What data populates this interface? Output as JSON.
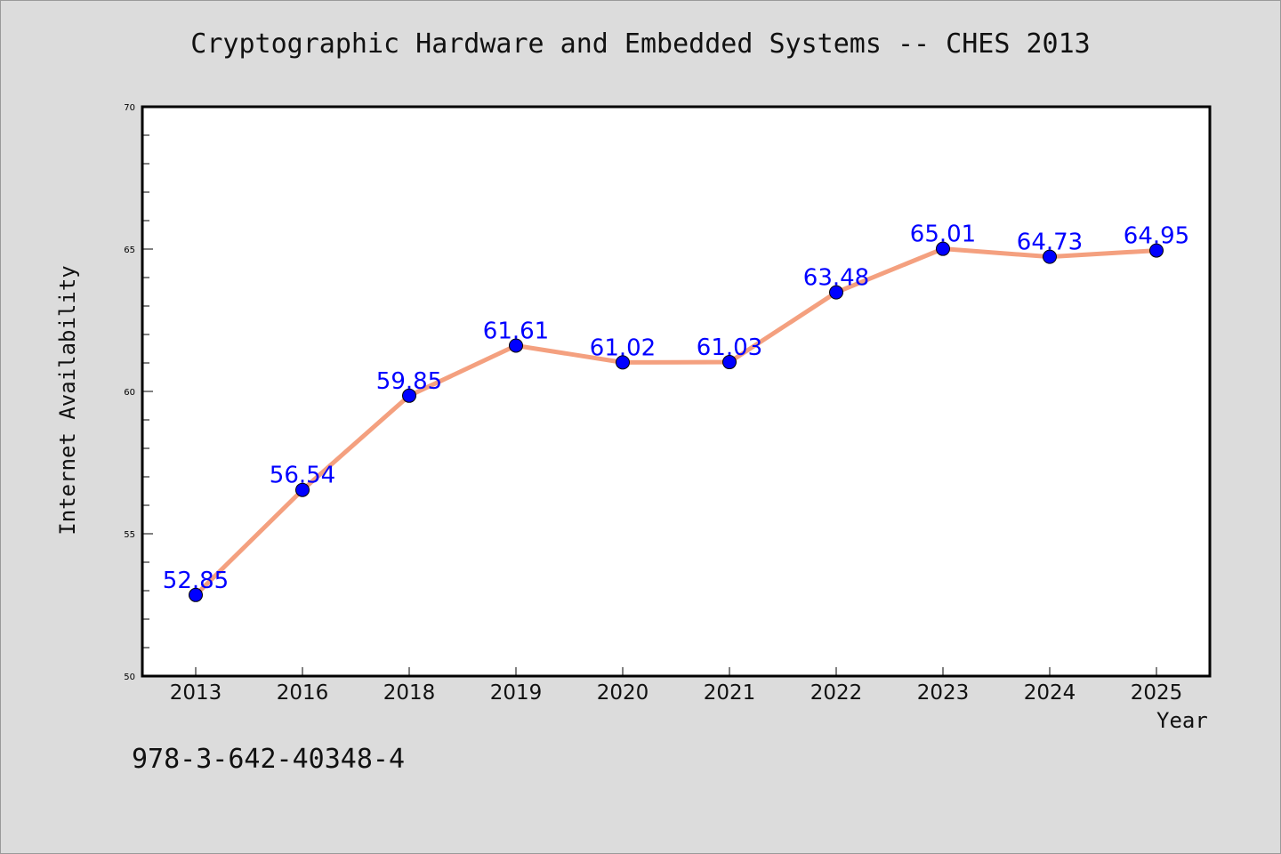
{
  "title": "Cryptographic Hardware and Embedded Systems -- CHES 2013",
  "footnote": "978-3-642-40348-4",
  "colors": {
    "background": "#dcdcdc",
    "plot_background": "#ffffff",
    "line": "#f4a07f",
    "marker": "#0000ff",
    "data_label": "#0000ff"
  },
  "chart_data": {
    "type": "line",
    "title": "Cryptographic Hardware and Embedded Systems -- CHES 2013",
    "xlabel": "Year",
    "ylabel": "Internet Availability",
    "categories": [
      "2013",
      "2016",
      "2018",
      "2019",
      "2020",
      "2021",
      "2022",
      "2023",
      "2024",
      "2025"
    ],
    "series": [
      {
        "values": [
          52.85,
          56.54,
          59.85,
          61.61,
          61.02,
          61.03,
          63.48,
          65.01,
          64.73,
          64.95
        ],
        "data_labels": [
          "52.85",
          "56.54",
          "59.85",
          "61.61",
          "61.02",
          "61.03",
          "63.48",
          "65.01",
          "64.73",
          "64.95"
        ]
      }
    ],
    "ylim": [
      50,
      70
    ],
    "yticks": [
      50,
      55,
      60,
      65,
      70
    ],
    "grid": false,
    "legend": "none"
  }
}
